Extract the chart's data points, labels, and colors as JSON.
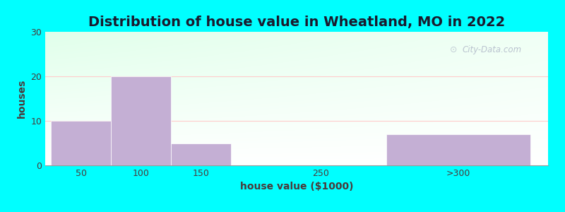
{
  "title": "Distribution of house value in Wheatland, MO in 2022",
  "xlabel": "house value ($1000)",
  "ylabel": "houses",
  "bar_labels": [
    "50",
    "100",
    "150",
    "250",
    ">300"
  ],
  "bar_values": [
    10,
    20,
    5,
    0,
    7
  ],
  "bar_color": "#c4afd4",
  "ylim": [
    0,
    30
  ],
  "yticks": [
    0,
    10,
    20,
    30
  ],
  "background_outer": "#00ffff",
  "title_fontsize": 14,
  "axis_label_fontsize": 10,
  "tick_fontsize": 9,
  "watermark": "City-Data.com",
  "title_color": "#1a1a2e",
  "label_color": "#4a3a3a",
  "tick_color": "#4a3a3a"
}
